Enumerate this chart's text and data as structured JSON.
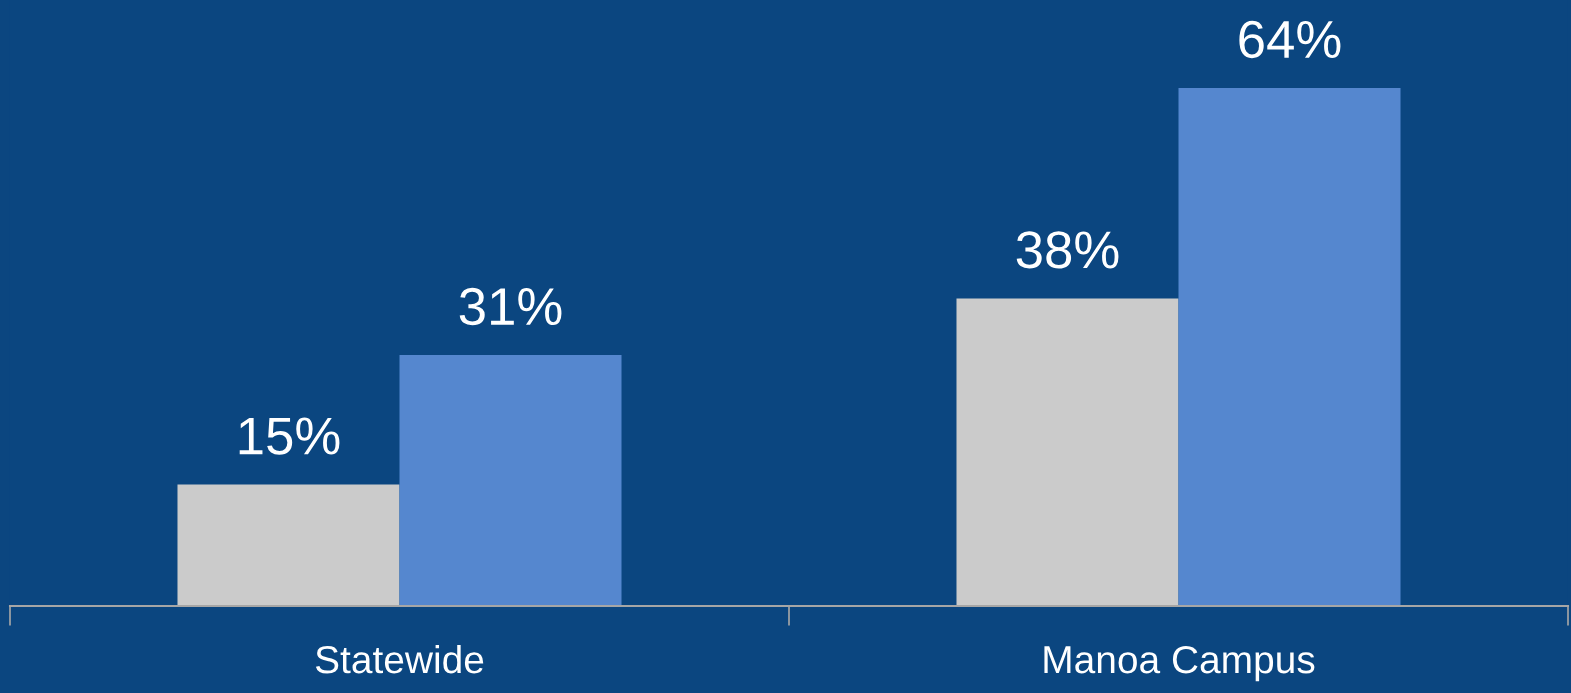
{
  "chart_data": {
    "type": "bar",
    "categories": [
      "Statewide",
      "Manoa Campus"
    ],
    "series": [
      {
        "color": "#cbcbcb",
        "values": [
          15,
          38
        ],
        "value_labels": [
          "15%",
          "38%"
        ]
      },
      {
        "color": "#5587cf",
        "values": [
          31,
          64
        ],
        "value_labels": [
          "31%",
          "64%"
        ]
      }
    ],
    "grid": false,
    "legend": false
  }
}
